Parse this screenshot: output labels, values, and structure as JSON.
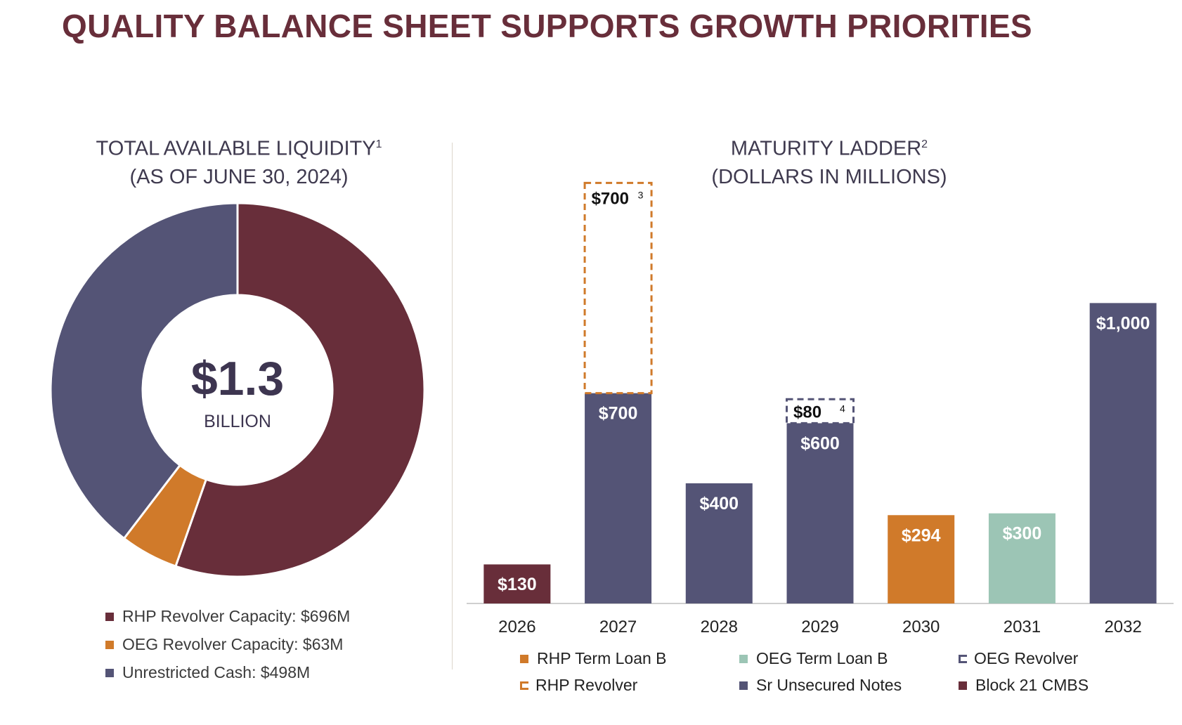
{
  "title": "QUALITY BALANCE SHEET SUPPORTS GROWTH PRIORITIES",
  "colors": {
    "maroon": "#682e3a",
    "orange": "#d07a2a",
    "purple": "#545476",
    "teal": "#9cc5b5"
  },
  "chart_data": [
    {
      "type": "pie",
      "title": "TOTAL AVAILABLE LIQUIDITY",
      "title_sup": "1",
      "subtitle": "(AS OF JUNE 30, 2024)",
      "center_value": "$1.3",
      "center_label": "BILLION",
      "slices": [
        {
          "name": "RHP Revolver Capacity",
          "value": 696,
          "color": "#682e3a",
          "legend": "RHP Revolver Capacity: $696M"
        },
        {
          "name": "OEG Revolver Capacity",
          "value": 63,
          "color": "#d07a2a",
          "legend": "OEG Revolver Capacity: $63M"
        },
        {
          "name": "Unrestricted Cash",
          "value": 498,
          "color": "#545476",
          "legend": "Unrestricted Cash: $498M"
        }
      ]
    },
    {
      "type": "bar",
      "title": "MATURITY LADDER",
      "title_sup": "2",
      "subtitle": "(DOLLARS IN MILLIONS)",
      "categories": [
        "2026",
        "2027",
        "2028",
        "2029",
        "2030",
        "2031",
        "2032"
      ],
      "ylim": [
        0,
        1050
      ],
      "bars": [
        {
          "year": "2026",
          "value": 130,
          "label": "$130",
          "color": "#682e3a"
        },
        {
          "year": "2027",
          "value": 700,
          "label": "$700",
          "color": "#545476"
        },
        {
          "year": "2028",
          "value": 400,
          "label": "$400",
          "color": "#545476"
        },
        {
          "year": "2029",
          "value": 600,
          "label": "$600",
          "color": "#545476"
        },
        {
          "year": "2030",
          "value": 294,
          "label": "$294",
          "color": "#d07a2a"
        },
        {
          "year": "2031",
          "value": 300,
          "label": "$300",
          "color": "#9cc5b5"
        },
        {
          "year": "2032",
          "value": 1000,
          "label": "$1,000",
          "color": "#545476"
        }
      ],
      "dashed": [
        {
          "year": "2027",
          "base": 700,
          "value": 700,
          "label": "$700",
          "sup": "3",
          "color": "#d07a2a"
        },
        {
          "year": "2029",
          "base": 600,
          "value": 80,
          "label": "$80",
          "sup": "4",
          "color": "#545476"
        }
      ],
      "legend": [
        {
          "label": "RHP Term Loan B",
          "color": "#d07a2a",
          "style": "solid"
        },
        {
          "label": "OEG Term Loan B",
          "color": "#9cc5b5",
          "style": "solid"
        },
        {
          "label": "OEG Revolver",
          "color": "#545476",
          "style": "dashed"
        },
        {
          "label": "RHP Revolver",
          "color": "#d07a2a",
          "style": "dashed"
        },
        {
          "label": "Sr Unsecured Notes",
          "color": "#545476",
          "style": "solid"
        },
        {
          "label": "Block 21 CMBS",
          "color": "#682e3a",
          "style": "solid"
        }
      ]
    }
  ]
}
